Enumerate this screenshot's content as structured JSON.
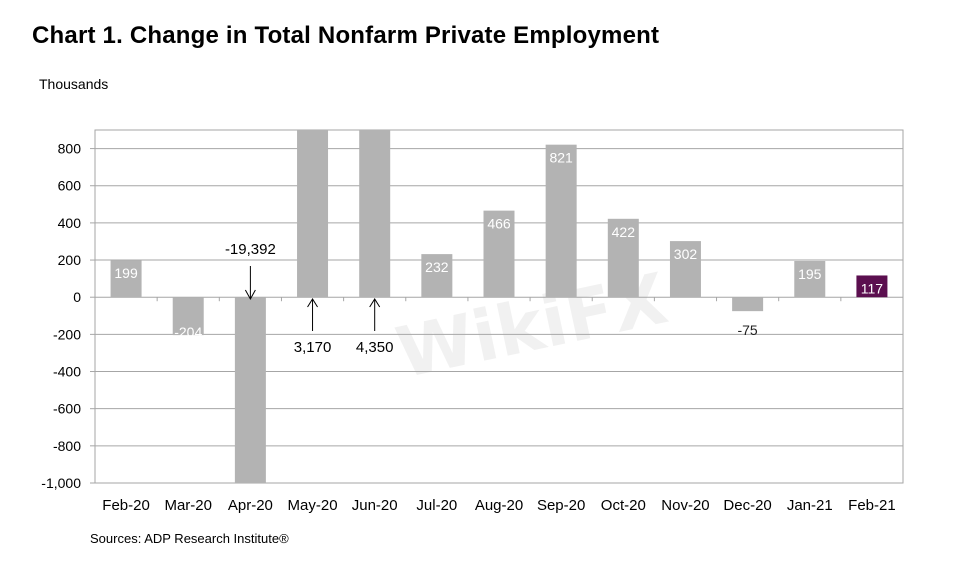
{
  "title": "Chart 1. Change in Total Nonfarm Private Employment",
  "unit_label": "Thousands",
  "source": "Sources: ADP Research Institute®",
  "watermark": "WikiFX",
  "colors": {
    "bar": "#b3b3b3",
    "highlight": "#5b0f4f",
    "grid": "#a6a6a6",
    "frame": "#a6a6a6"
  },
  "chart_data": {
    "type": "bar",
    "categories": [
      "Feb-20",
      "Mar-20",
      "Apr-20",
      "May-20",
      "Jun-20",
      "Jul-20",
      "Aug-20",
      "Sep-20",
      "Oct-20",
      "Nov-20",
      "Dec-20",
      "Jan-21",
      "Feb-21"
    ],
    "values": [
      199,
      -204,
      -19392,
      3170,
      4350,
      232,
      466,
      821,
      422,
      302,
      -75,
      195,
      117
    ],
    "data_labels": [
      "199",
      "-204",
      "-19,392",
      "3,170",
      "4,350",
      "232",
      "466",
      "821",
      "422",
      "302",
      "-75",
      "195",
      "117"
    ],
    "highlight_index": 12,
    "ylim": [
      -1000,
      900
    ],
    "yticks": [
      -1000,
      -800,
      -600,
      -400,
      -200,
      0,
      200,
      400,
      600,
      800
    ],
    "ytick_labels": [
      "-1,000",
      "-800",
      "-600",
      "-400",
      "-200",
      "0",
      "200",
      "400",
      "600",
      "800"
    ],
    "grid": true,
    "xlabel": "",
    "ylabel": "Thousands"
  }
}
